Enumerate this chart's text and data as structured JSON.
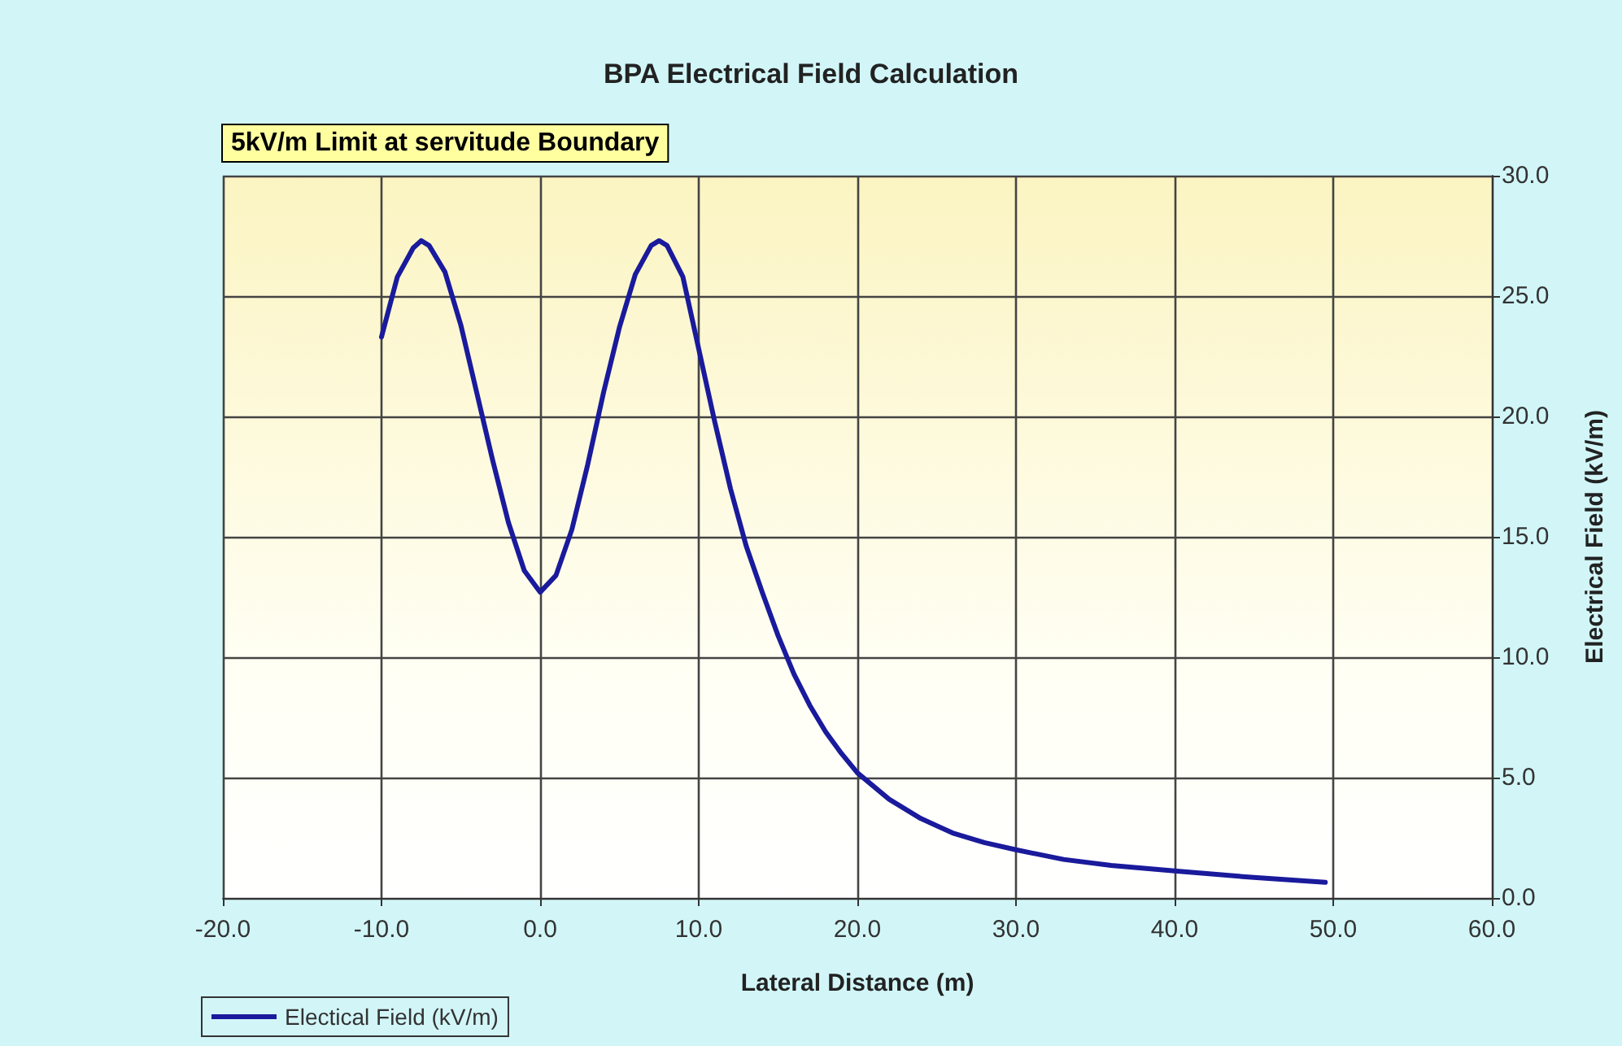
{
  "chart_data": {
    "type": "line",
    "title": "BPA Electrical Field Calculation",
    "xlabel": "Lateral Distance (m)",
    "ylabel": "Electrical Field (kV/m)",
    "annotations": [
      "5kV/m Limit at servitude Boundary"
    ],
    "x": [
      -10,
      -9,
      -8,
      -7.5,
      -7,
      -6,
      -5,
      -4,
      -3,
      -2,
      -1,
      0,
      1,
      2,
      3,
      4,
      5,
      6,
      7,
      7.5,
      8,
      9,
      10,
      11,
      12,
      13,
      14,
      15,
      16,
      17,
      18,
      19,
      20,
      22,
      24,
      26,
      28,
      30,
      33,
      36,
      40,
      45,
      49.5
    ],
    "series": [
      {
        "name": "Electical Field (kV/m)",
        "color": "#1a1a9c",
        "values": [
          23.3,
          25.8,
          27.0,
          27.3,
          27.1,
          26.0,
          23.8,
          21.0,
          18.2,
          15.6,
          13.6,
          12.7,
          13.4,
          15.3,
          18.0,
          21.0,
          23.7,
          25.9,
          27.1,
          27.3,
          27.1,
          25.8,
          22.8,
          19.8,
          17.0,
          14.6,
          12.7,
          10.9,
          9.3,
          8.0,
          6.9,
          6.0,
          5.2,
          4.1,
          3.3,
          2.7,
          2.3,
          2.0,
          1.6,
          1.35,
          1.12,
          0.85,
          0.65
        ]
      }
    ],
    "xlim": [
      -20,
      60
    ],
    "xticks": [
      {
        "value": -20,
        "label": "-20.0"
      },
      {
        "value": -10,
        "label": "-10.0"
      },
      {
        "value": 0,
        "label": "0.0"
      },
      {
        "value": 10,
        "label": "10.0"
      },
      {
        "value": 20,
        "label": "20.0"
      },
      {
        "value": 30,
        "label": "30.0"
      },
      {
        "value": 40,
        "label": "40.0"
      },
      {
        "value": 50,
        "label": "50.0"
      },
      {
        "value": 60,
        "label": "60.0"
      }
    ],
    "ylim": [
      0,
      30
    ],
    "yticks": [
      {
        "value": 0,
        "label": "0.0"
      },
      {
        "value": 5,
        "label": "5.0"
      },
      {
        "value": 10,
        "label": "10.0"
      },
      {
        "value": 15,
        "label": "15.0"
      },
      {
        "value": 20,
        "label": "20.0"
      },
      {
        "value": 25,
        "label": "25.0"
      },
      {
        "value": 30,
        "label": "30.0"
      }
    ],
    "grid": true,
    "legend": "bottom left",
    "marker": "none",
    "line_style": "solid"
  }
}
